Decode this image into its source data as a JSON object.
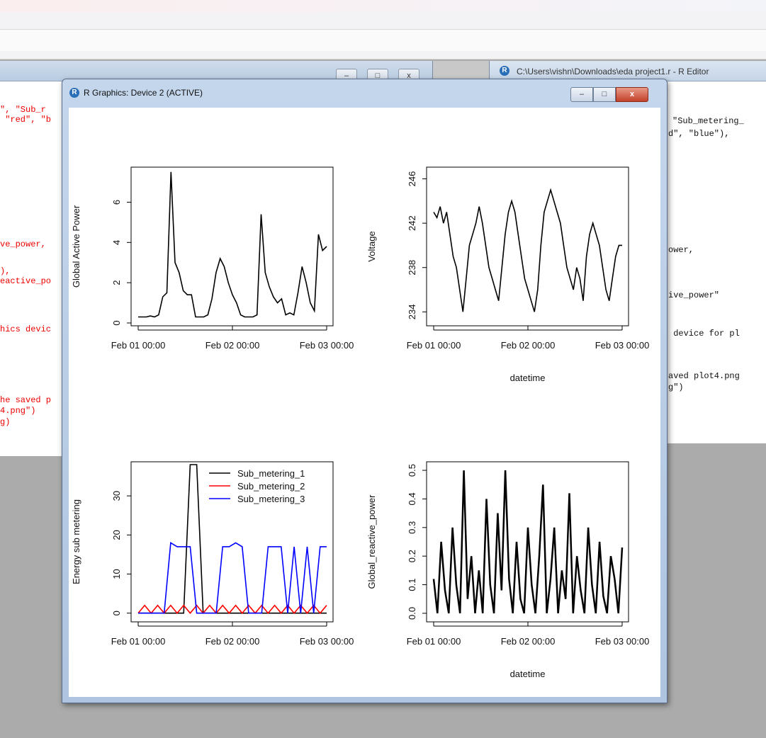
{
  "editor_right": {
    "title": "C:\\Users\\vishn\\Downloads\\eda project1.r - R Editor",
    "code_lines": [
      "\"Sub_metering_",
      "d\", \"blue\"),",
      "ower,",
      "ive_power\"",
      " device for pl",
      "aved plot4.png",
      "g\")"
    ]
  },
  "editor_left": {
    "code_lines": [
      "\", \"Sub_r",
      " \"red\", \"b",
      "ve_power,",
      "),",
      "eactive_po",
      "hics devic",
      "he saved p",
      "4.png\")",
      "g)"
    ]
  },
  "graphics_window": {
    "title": "R Graphics: Device 2 (ACTIVE)",
    "minimize_label": "–",
    "maximize_label": "□",
    "close_label": "x"
  },
  "left_window_buttons": [
    "–",
    "□",
    "x"
  ],
  "chart_data": [
    {
      "type": "line",
      "ylabel": "Global Active Power",
      "xlabel": "",
      "x_ticks": [
        "Feb 01 00:00",
        "Feb 02 00:00",
        "Feb 03 00:00"
      ],
      "y_ticks": [
        0,
        2,
        4,
        6
      ],
      "ylim": [
        0,
        7.6
      ],
      "series": [
        {
          "values": [
            0.3,
            0.3,
            0.3,
            0.35,
            0.3,
            0.4,
            1.3,
            1.5,
            7.5,
            3.0,
            2.5,
            1.6,
            1.4,
            1.4,
            0.3,
            0.3,
            0.3,
            0.4,
            1.2,
            2.5,
            3.2,
            2.8,
            2.0,
            1.4,
            1.0,
            0.4,
            0.3,
            0.3,
            0.3,
            0.4,
            5.4,
            2.5,
            1.8,
            1.3,
            1.0,
            1.2,
            0.4,
            0.5,
            0.4,
            1.5,
            2.8,
            2.0,
            1.0,
            0.6,
            4.4,
            3.6,
            3.8
          ]
        }
      ]
    },
    {
      "type": "line",
      "ylabel": "Voltage",
      "xlabel": "datetime",
      "x_ticks": [
        "Feb 01 00:00",
        "Feb 02 00:00",
        "Feb 03 00:00"
      ],
      "y_ticks": [
        234,
        238,
        242,
        246
      ],
      "ylim": [
        233,
        246.8
      ],
      "series": [
        {
          "values": [
            243,
            242.5,
            243.5,
            242,
            243,
            241,
            239,
            238,
            236,
            234,
            237,
            240,
            241,
            242,
            243.5,
            242,
            240,
            238,
            237,
            236,
            235,
            238,
            241,
            243,
            244,
            243,
            241,
            239,
            237,
            236,
            235,
            234,
            236,
            240,
            243,
            244,
            245,
            244,
            243,
            242,
            240,
            238,
            237,
            236,
            238,
            237,
            235,
            239,
            241,
            242,
            241,
            240,
            238,
            236,
            235,
            237,
            239,
            240,
            240
          ]
        }
      ]
    },
    {
      "type": "line",
      "ylabel": "Energy sub metering",
      "xlabel": "",
      "x_ticks": [
        "Feb 01 00:00",
        "Feb 02 00:00",
        "Feb 03 00:00"
      ],
      "y_ticks": [
        0,
        10,
        20,
        30
      ],
      "ylim": [
        -1.5,
        38
      ],
      "legend": "top-right",
      "series": [
        {
          "name": "Sub_metering_1",
          "color": "#000000",
          "values": [
            0,
            0,
            0,
            0,
            0,
            0,
            0,
            0,
            38,
            38,
            0,
            0,
            0,
            0,
            0,
            0,
            0,
            0,
            0,
            0,
            0,
            0,
            0,
            0,
            0,
            0,
            0,
            0,
            0,
            0
          ]
        },
        {
          "name": "Sub_metering_2",
          "color": "#ff0000",
          "values": [
            0,
            2,
            0,
            2,
            0,
            2,
            0,
            2,
            0,
            2,
            0,
            2,
            0,
            2,
            0,
            2,
            0,
            2,
            0,
            2,
            0,
            2,
            0,
            2,
            0,
            2,
            0,
            2,
            0,
            2
          ]
        },
        {
          "name": "Sub_metering_3",
          "color": "#0000ff",
          "values": [
            0,
            0,
            0,
            0,
            0,
            18,
            17,
            17,
            17,
            0,
            0,
            0,
            0,
            17,
            17,
            18,
            17,
            0,
            0,
            0,
            17,
            17,
            17,
            0,
            17,
            0,
            17,
            0,
            17,
            17
          ]
        }
      ]
    },
    {
      "type": "line",
      "ylabel": "Global_reactive_power",
      "xlabel": "datetime",
      "x_ticks": [
        "Feb 01 00:00",
        "Feb 02 00:00",
        "Feb 03 00:00"
      ],
      "y_ticks": [
        "0.0",
        "0.1",
        "0.2",
        "0.3",
        "0.4",
        "0.5"
      ],
      "ylim": [
        -0.02,
        0.52
      ],
      "series": [
        {
          "values": [
            0.12,
            0.0,
            0.25,
            0.08,
            0.0,
            0.3,
            0.1,
            0.0,
            0.5,
            0.05,
            0.2,
            0.0,
            0.15,
            0.0,
            0.4,
            0.1,
            0.0,
            0.35,
            0.08,
            0.5,
            0.12,
            0.0,
            0.25,
            0.05,
            0.0,
            0.3,
            0.1,
            0.0,
            0.2,
            0.45,
            0.0,
            0.12,
            0.3,
            0.0,
            0.15,
            0.05,
            0.42,
            0.0,
            0.2,
            0.08,
            0.0,
            0.3,
            0.1,
            0.0,
            0.25,
            0.06,
            0.0,
            0.2,
            0.12,
            0.0,
            0.23
          ]
        }
      ]
    }
  ]
}
